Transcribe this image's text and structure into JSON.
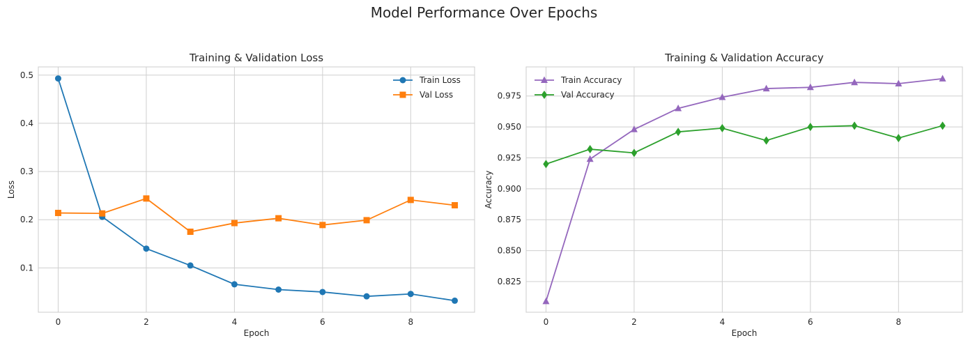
{
  "figure": {
    "title": "Model Performance Over Epochs"
  },
  "chart_data": [
    {
      "type": "line",
      "title": "Training & Validation Loss",
      "xlabel": "Epoch",
      "ylabel": "Loss",
      "x": [
        0,
        1,
        2,
        3,
        4,
        5,
        6,
        7,
        8,
        9
      ],
      "xlim": [
        -0.45,
        9.45
      ],
      "ylim": [
        0.008,
        0.517
      ],
      "xticks": [
        0,
        2,
        4,
        6,
        8
      ],
      "yticks": [
        0.1,
        0.2,
        0.3,
        0.4,
        0.5
      ],
      "ytick_format": "1",
      "grid": true,
      "legend_position": "top-right",
      "series": [
        {
          "name": "Train Loss",
          "color": "#1f77b4",
          "marker": "circle",
          "values": [
            0.493,
            0.206,
            0.14,
            0.105,
            0.066,
            0.055,
            0.05,
            0.041,
            0.046,
            0.032
          ]
        },
        {
          "name": "Val Loss",
          "color": "#ff7f0e",
          "marker": "square",
          "values": [
            0.214,
            0.213,
            0.244,
            0.175,
            0.193,
            0.203,
            0.189,
            0.199,
            0.241,
            0.23
          ]
        }
      ]
    },
    {
      "type": "line",
      "title": "Training & Validation Accuracy",
      "xlabel": "Epoch",
      "ylabel": "Accuracy",
      "x": [
        0,
        1,
        2,
        3,
        4,
        5,
        6,
        7,
        8,
        9
      ],
      "xlim": [
        -0.45,
        9.45
      ],
      "ylim": [
        0.8002,
        0.9985
      ],
      "xticks": [
        0,
        2,
        4,
        6,
        8
      ],
      "yticks": [
        0.825,
        0.85,
        0.875,
        0.9,
        0.925,
        0.95,
        0.975
      ],
      "ytick_format": "3",
      "grid": true,
      "legend_position": "top-left",
      "series": [
        {
          "name": "Train Accuracy",
          "color": "#9467bd",
          "marker": "triangle",
          "values": [
            0.809,
            0.924,
            0.948,
            0.965,
            0.974,
            0.981,
            0.982,
            0.986,
            0.985,
            0.989
          ]
        },
        {
          "name": "Val Accuracy",
          "color": "#2ca02c",
          "marker": "diamond",
          "values": [
            0.92,
            0.932,
            0.929,
            0.946,
            0.949,
            0.939,
            0.95,
            0.951,
            0.941,
            0.951
          ]
        }
      ]
    }
  ]
}
